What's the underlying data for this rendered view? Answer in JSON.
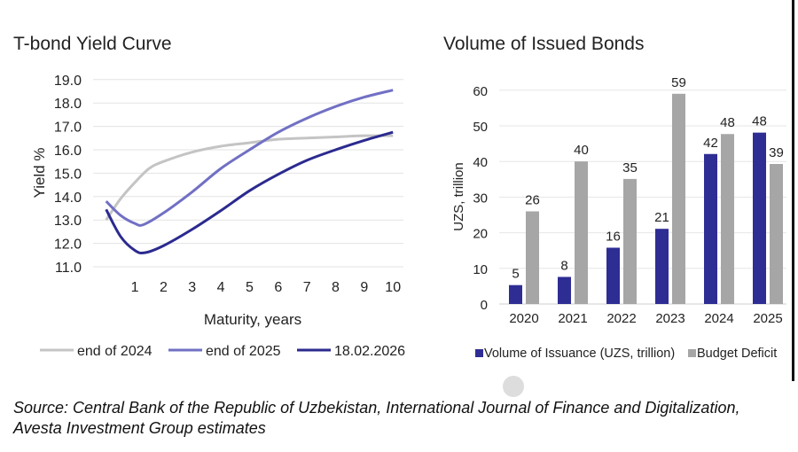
{
  "chart_data": [
    {
      "type": "line",
      "title": "T-bond Yield Curve",
      "xlabel": "Maturity, years",
      "ylabel": "Yield %",
      "ylim": [
        11.0,
        19.0
      ],
      "yticks": [
        "11.0",
        "12.0",
        "13.0",
        "14.0",
        "15.0",
        "16.0",
        "17.0",
        "18.0",
        "19.0"
      ],
      "xticks": [
        "1",
        "2",
        "3",
        "4",
        "5",
        "6",
        "7",
        "8",
        "9",
        "10"
      ],
      "grid": true,
      "legend": "bottom",
      "series": [
        {
          "name": "end of 2024",
          "color": "#c4c4c4",
          "x": [
            0,
            0.5,
            1,
            1.5,
            2,
            3,
            4,
            5,
            6,
            7,
            8,
            9,
            10
          ],
          "y": [
            13.0,
            13.9,
            14.6,
            15.2,
            15.5,
            15.9,
            16.15,
            16.3,
            16.45,
            16.5,
            16.55,
            16.6,
            16.6
          ]
        },
        {
          "name": "end of 2025",
          "color": "#7170c4",
          "x": [
            0,
            0.5,
            1,
            1.3,
            2,
            3,
            4,
            5,
            6,
            7,
            8,
            9,
            10
          ],
          "y": [
            13.8,
            13.2,
            12.85,
            12.8,
            13.3,
            14.2,
            15.2,
            16.0,
            16.75,
            17.35,
            17.85,
            18.25,
            18.55
          ]
        },
        {
          "name": "18.02.2026",
          "color": "#2b2a8f",
          "x": [
            0,
            0.5,
            1,
            1.35,
            2,
            3,
            4,
            5,
            6,
            7,
            8,
            9,
            10
          ],
          "y": [
            13.45,
            12.3,
            11.7,
            11.6,
            11.9,
            12.6,
            13.4,
            14.25,
            14.95,
            15.55,
            16.0,
            16.4,
            16.75
          ]
        }
      ]
    },
    {
      "type": "bar",
      "title": "Volume of Issued Bonds",
      "ylabel": "UZS, trillion",
      "ylim": [
        0,
        60
      ],
      "yticks": [
        "0",
        "10",
        "20",
        "30",
        "40",
        "50",
        "60"
      ],
      "categories": [
        "2020",
        "2021",
        "2022",
        "2023",
        "2024",
        "2025"
      ],
      "grid": true,
      "legend": "bottom",
      "series": [
        {
          "name": "Volume of Issuance (UZS, trillion)",
          "color": "#2e2d94",
          "values": [
            5.3,
            7.6,
            15.8,
            21.1,
            42.1,
            48.1
          ],
          "labels": [
            "5",
            "8",
            "16",
            "21",
            "42",
            "48"
          ]
        },
        {
          "name": "Budget Deficit",
          "color": "#a6a6a6",
          "values": [
            26,
            40,
            35.1,
            59,
            47.7,
            39.3
          ],
          "labels": [
            "26",
            "40",
            "35",
            "59",
            "48",
            "39"
          ]
        }
      ]
    }
  ],
  "source": "Source: Central Bank of the Republic of Uzbekistan, International Journal of Finance and Digitalization, Avesta Investment Group estimates"
}
